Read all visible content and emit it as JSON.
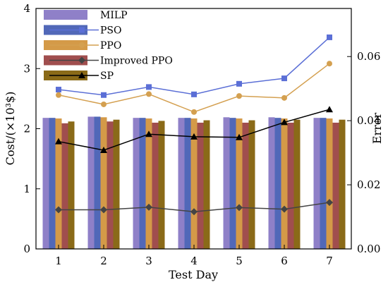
{
  "chart_data": {
    "type": "bar",
    "xlabel": "Test Day",
    "ylabel_left": "Cost/(×10³$)",
    "ylabel_right": "Error",
    "categories": [
      "1",
      "2",
      "3",
      "4",
      "5",
      "6",
      "7"
    ],
    "ylim_left": [
      0,
      4
    ],
    "ylim_right": [
      0,
      0.075
    ],
    "yticks_left": [
      "0",
      "1",
      "2",
      "3",
      "4"
    ],
    "yticks_right": [
      "0.00",
      "0.02",
      "0.04",
      "0.06"
    ],
    "yticks_right_values": [
      0,
      0.02,
      0.04,
      0.06
    ],
    "legend_position": "top-left",
    "bar_series": [
      {
        "name": "MILP",
        "color": "#8f80c8",
        "values": [
          2.18,
          2.2,
          2.18,
          2.18,
          2.19,
          2.19,
          2.18
        ]
      },
      {
        "name": "PSO",
        "color": "#5168b8",
        "values": [
          2.18,
          2.2,
          2.18,
          2.18,
          2.18,
          2.18,
          2.18
        ]
      },
      {
        "name": "PPO",
        "color": "#d49a48",
        "values": [
          2.17,
          2.19,
          2.17,
          2.17,
          2.17,
          2.17,
          2.17
        ]
      },
      {
        "name": "Improved PPO",
        "color": "#a04e4e",
        "values": [
          2.09,
          2.12,
          2.1,
          2.1,
          2.1,
          2.1,
          2.1
        ]
      },
      {
        "name": "SP",
        "color": "#8a6a18",
        "values": [
          2.12,
          2.15,
          2.13,
          2.14,
          2.14,
          2.15,
          2.15
        ]
      }
    ],
    "line_series": [
      {
        "name": "PSO",
        "color": "#5b6fd6",
        "marker": "square",
        "values": [
          0.0497,
          0.048,
          0.0505,
          0.0482,
          0.0515,
          0.0532,
          0.066
        ]
      },
      {
        "name": "PPO",
        "color": "#d4a050",
        "marker": "circle",
        "values": [
          0.048,
          0.0451,
          0.0483,
          0.0427,
          0.0477,
          0.0471,
          0.0578
        ]
      },
      {
        "name": "Improved PPO",
        "color": "#444444",
        "marker": "diamond",
        "values": [
          0.0122,
          0.0122,
          0.013,
          0.0116,
          0.0129,
          0.0124,
          0.0145
        ]
      },
      {
        "name": "SP",
        "color": "#000000",
        "marker": "triangle",
        "values": [
          0.0335,
          0.0308,
          0.0358,
          0.035,
          0.0348,
          0.0395,
          0.0435
        ]
      }
    ],
    "legend": [
      "MILP",
      "PSO",
      "PPO",
      "Improved PPO",
      "SP"
    ]
  }
}
